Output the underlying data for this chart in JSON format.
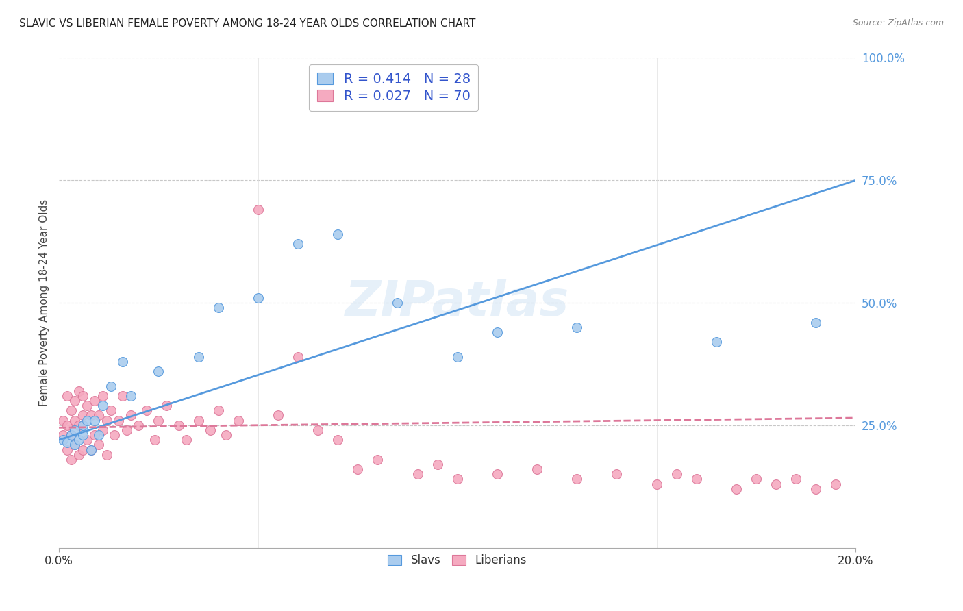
{
  "title": "SLAVIC VS LIBERIAN FEMALE POVERTY AMONG 18-24 YEAR OLDS CORRELATION CHART",
  "source": "Source: ZipAtlas.com",
  "ylabel_label": "Female Poverty Among 18-24 Year Olds",
  "xlim": [
    0.0,
    0.2
  ],
  "ylim": [
    0.0,
    1.0
  ],
  "ytick_values": [
    0.25,
    0.5,
    0.75,
    1.0
  ],
  "background_color": "#ffffff",
  "grid_color": "#c8c8c8",
  "watermark_text": "ZIPatlas",
  "legend_slavs_label": "Slavs",
  "legend_liberians_label": "Liberians",
  "slavs_R": "0.414",
  "slavs_N": "28",
  "liberians_R": "0.027",
  "liberians_N": "70",
  "slavs_color": "#aaccee",
  "liberians_color": "#f5aac0",
  "slavs_line_color": "#5599dd",
  "liberians_line_color": "#dd7799",
  "legend_text_color": "#3355cc",
  "slavs_x": [
    0.001,
    0.002,
    0.003,
    0.004,
    0.004,
    0.005,
    0.006,
    0.006,
    0.007,
    0.008,
    0.009,
    0.01,
    0.011,
    0.013,
    0.016,
    0.018,
    0.025,
    0.035,
    0.04,
    0.05,
    0.06,
    0.07,
    0.085,
    0.1,
    0.11,
    0.13,
    0.165,
    0.19
  ],
  "slavs_y": [
    0.22,
    0.215,
    0.23,
    0.21,
    0.24,
    0.22,
    0.25,
    0.23,
    0.26,
    0.2,
    0.26,
    0.23,
    0.29,
    0.33,
    0.38,
    0.31,
    0.36,
    0.39,
    0.49,
    0.51,
    0.62,
    0.64,
    0.5,
    0.39,
    0.44,
    0.45,
    0.42,
    0.46
  ],
  "liberians_x": [
    0.001,
    0.001,
    0.002,
    0.002,
    0.002,
    0.003,
    0.003,
    0.003,
    0.004,
    0.004,
    0.004,
    0.005,
    0.005,
    0.005,
    0.006,
    0.006,
    0.006,
    0.007,
    0.007,
    0.008,
    0.008,
    0.009,
    0.009,
    0.01,
    0.01,
    0.011,
    0.011,
    0.012,
    0.012,
    0.013,
    0.014,
    0.015,
    0.016,
    0.017,
    0.018,
    0.02,
    0.022,
    0.024,
    0.025,
    0.027,
    0.03,
    0.032,
    0.035,
    0.038,
    0.04,
    0.042,
    0.045,
    0.05,
    0.055,
    0.06,
    0.065,
    0.07,
    0.075,
    0.08,
    0.09,
    0.095,
    0.1,
    0.11,
    0.12,
    0.13,
    0.14,
    0.15,
    0.155,
    0.16,
    0.17,
    0.175,
    0.18,
    0.185,
    0.19,
    0.195
  ],
  "liberians_y": [
    0.23,
    0.26,
    0.2,
    0.25,
    0.31,
    0.18,
    0.23,
    0.28,
    0.21,
    0.26,
    0.3,
    0.19,
    0.25,
    0.32,
    0.2,
    0.27,
    0.31,
    0.22,
    0.29,
    0.2,
    0.27,
    0.23,
    0.3,
    0.21,
    0.27,
    0.24,
    0.31,
    0.19,
    0.26,
    0.28,
    0.23,
    0.26,
    0.31,
    0.24,
    0.27,
    0.25,
    0.28,
    0.22,
    0.26,
    0.29,
    0.25,
    0.22,
    0.26,
    0.24,
    0.28,
    0.23,
    0.26,
    0.69,
    0.27,
    0.39,
    0.24,
    0.22,
    0.16,
    0.18,
    0.15,
    0.17,
    0.14,
    0.15,
    0.16,
    0.14,
    0.15,
    0.13,
    0.15,
    0.14,
    0.12,
    0.14,
    0.13,
    0.14,
    0.12,
    0.13
  ]
}
